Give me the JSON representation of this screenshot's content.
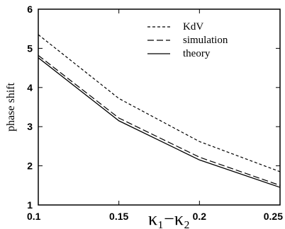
{
  "chart_data": {
    "type": "line",
    "title": "",
    "xlabel": "κ₁−κ₂",
    "ylabel": "phase shift",
    "xlim": [
      0.1,
      0.25
    ],
    "ylim": [
      1,
      6
    ],
    "xticks": [
      "0.1",
      "0.15",
      "0.2",
      "0.25"
    ],
    "yticks": [
      "1",
      "2",
      "3",
      "4",
      "5",
      "6"
    ],
    "x": [
      0.1,
      0.15,
      0.2,
      0.25
    ],
    "grid": false,
    "legend_position": "top-right",
    "series": [
      {
        "name": "KdV",
        "style": "short-dash",
        "color": "#000000",
        "values": [
          5.35,
          3.72,
          2.62,
          1.85
        ]
      },
      {
        "name": "simulation",
        "style": "long-dash",
        "color": "#000000",
        "values": [
          4.82,
          3.22,
          2.22,
          1.5
        ]
      },
      {
        "name": "theory",
        "style": "solid",
        "color": "#000000",
        "values": [
          4.76,
          3.15,
          2.15,
          1.45
        ]
      }
    ]
  }
}
